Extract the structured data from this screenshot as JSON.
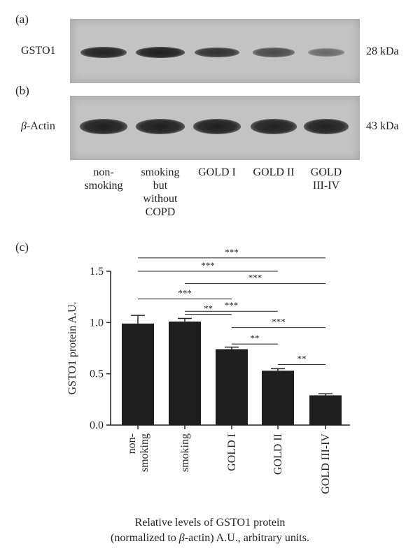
{
  "panels": {
    "a": "(a)",
    "b": "(b)",
    "c": "(c)"
  },
  "blot_a": {
    "protein": "GSTO1",
    "size": "28 kDa",
    "intensities": [
      0.92,
      0.95,
      0.8,
      0.6,
      0.35
    ]
  },
  "blot_b": {
    "protein_prefix": "β",
    "protein_suffix": "-Actin",
    "size": "43 kDa",
    "intensities": [
      0.95,
      0.95,
      0.95,
      0.93,
      0.93
    ]
  },
  "lanes": [
    [
      "non-",
      "smoking"
    ],
    [
      "smoking",
      "but",
      "without",
      "COPD"
    ],
    [
      "GOLD I"
    ],
    [
      "GOLD II"
    ],
    [
      "GOLD",
      "III-IV"
    ]
  ],
  "chart_data": {
    "type": "bar",
    "ylabel": "GSTO1 protein A.U.",
    "yticks": [
      "0.0",
      "0.5",
      "1.0",
      "1.5"
    ],
    "ylim": [
      0,
      1.5
    ],
    "categories": [
      [
        "non-",
        "smoking"
      ],
      [
        "smoking"
      ],
      [
        "GOLD I"
      ],
      [
        "GOLD II"
      ],
      [
        "GOLD III-IV"
      ]
    ],
    "values": [
      0.99,
      1.01,
      0.74,
      0.53,
      0.29
    ],
    "errors": [
      0.08,
      0.03,
      0.02,
      0.02,
      0.015
    ],
    "significance": [
      {
        "from": 0,
        "to": 4,
        "label": "***",
        "y": 1.63
      },
      {
        "from": 0,
        "to": 3,
        "label": "***",
        "y": 1.5
      },
      {
        "from": 1,
        "to": 4,
        "label": "***",
        "y": 1.38
      },
      {
        "from": 0,
        "to": 2,
        "label": "***",
        "y": 1.23
      },
      {
        "from": 1,
        "to": 3,
        "label": "***",
        "y": 1.11
      },
      {
        "from": 1,
        "to": 2,
        "label": "**",
        "y": 1.08
      },
      {
        "from": 2,
        "to": 4,
        "label": "***",
        "y": 0.95
      },
      {
        "from": 2,
        "to": 3,
        "label": "**",
        "y": 0.79
      },
      {
        "from": 3,
        "to": 4,
        "label": "**",
        "y": 0.59
      }
    ]
  },
  "caption": {
    "line1": "Relative levels of GSTO1 protein",
    "line2_pre": "(normalized to ",
    "line2_beta": "β",
    "line2_post": "-actin) A.U., arbitrary units."
  }
}
